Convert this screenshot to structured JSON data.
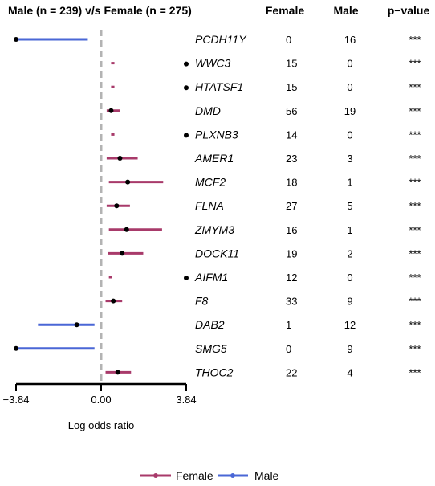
{
  "chart_data": {
    "type": "forest",
    "title": "Male (n = 239) v/s Female (n = 275)",
    "columns": {
      "female": "Female",
      "male": "Male",
      "pvalue": "p−value"
    },
    "xlabel": "Log odds ratio",
    "xticks": [
      {
        "value": -3.84,
        "label": "−3.84"
      },
      {
        "value": 0,
        "label": "0.00"
      },
      {
        "value": 3.84,
        "label": "3.84"
      }
    ],
    "xlim": [
      -3.84,
      3.84
    ],
    "reference_line": 0,
    "legend": {
      "placement": "bottom",
      "entries": [
        "Female",
        "Male"
      ]
    },
    "colors": {
      "female": "#a83a6a",
      "male": "#4a67d6",
      "point": "#000000",
      "ref": "#b3b3b3"
    },
    "rows": [
      {
        "gene": "PCDH11Y",
        "group": "Male",
        "estimate": -3.84,
        "low": -3.84,
        "high": -0.6,
        "side_marker": false,
        "female": "0",
        "male": "16",
        "p": "***"
      },
      {
        "gene": "WWC3",
        "group": "Female",
        "estimate": null,
        "low": 0.45,
        "high": 0.6,
        "side_marker": true,
        "female": "15",
        "male": "0",
        "p": "***"
      },
      {
        "gene": "HTATSF1",
        "group": "Female",
        "estimate": null,
        "low": 0.45,
        "high": 0.6,
        "side_marker": true,
        "female": "15",
        "male": "0",
        "p": "***"
      },
      {
        "gene": "DMD",
        "group": "Female",
        "estimate": 0.45,
        "low": 0.25,
        "high": 0.85,
        "side_marker": false,
        "female": "56",
        "male": "19",
        "p": "***"
      },
      {
        "gene": "PLXNB3",
        "group": "Female",
        "estimate": null,
        "low": 0.45,
        "high": 0.6,
        "side_marker": true,
        "female": "14",
        "male": "0",
        "p": "***"
      },
      {
        "gene": "AMER1",
        "group": "Female",
        "estimate": 0.85,
        "low": 0.25,
        "high": 1.65,
        "side_marker": false,
        "female": "23",
        "male": "3",
        "p": "***"
      },
      {
        "gene": "MCF2",
        "group": "Female",
        "estimate": 1.2,
        "low": 0.35,
        "high": 2.8,
        "side_marker": false,
        "female": "18",
        "male": "1",
        "p": "***"
      },
      {
        "gene": "FLNA",
        "group": "Female",
        "estimate": 0.7,
        "low": 0.25,
        "high": 1.3,
        "side_marker": false,
        "female": "27",
        "male": "5",
        "p": "***"
      },
      {
        "gene": "ZMYM3",
        "group": "Female",
        "estimate": 1.15,
        "low": 0.35,
        "high": 2.75,
        "side_marker": false,
        "female": "16",
        "male": "1",
        "p": "***"
      },
      {
        "gene": "DOCK11",
        "group": "Female",
        "estimate": 0.95,
        "low": 0.3,
        "high": 1.9,
        "side_marker": false,
        "female": "19",
        "male": "2",
        "p": "***"
      },
      {
        "gene": "AIFM1",
        "group": "Female",
        "estimate": null,
        "low": 0.35,
        "high": 0.5,
        "side_marker": true,
        "female": "12",
        "male": "0",
        "p": "***"
      },
      {
        "gene": "F8",
        "group": "Female",
        "estimate": 0.55,
        "low": 0.2,
        "high": 0.95,
        "side_marker": false,
        "female": "33",
        "male": "9",
        "p": "***"
      },
      {
        "gene": "DAB2",
        "group": "Male",
        "estimate": -1.1,
        "low": -2.85,
        "high": -0.3,
        "side_marker": false,
        "female": "1",
        "male": "12",
        "p": "***"
      },
      {
        "gene": "SMG5",
        "group": "Male",
        "estimate": -3.84,
        "low": -3.84,
        "high": -0.3,
        "side_marker": false,
        "female": "0",
        "male": "9",
        "p": "***"
      },
      {
        "gene": "THOC2",
        "group": "Female",
        "estimate": 0.75,
        "low": 0.2,
        "high": 1.35,
        "side_marker": false,
        "female": "22",
        "male": "4",
        "p": "***"
      }
    ]
  }
}
